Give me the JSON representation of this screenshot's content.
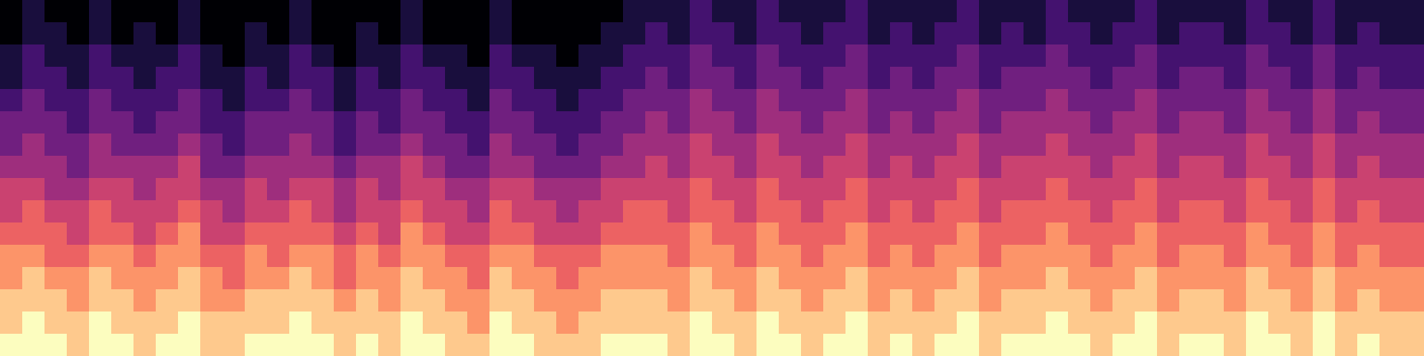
{
  "chart_data": {
    "type": "heatmap",
    "color": "magma",
    "tick_labels": false,
    "zlim": [
      0,
      9
    ],
    "cells": [
      [
        0,
        1,
        0,
        0,
        1,
        0,
        0,
        0,
        1,
        0,
        0,
        0,
        0,
        1,
        0,
        0,
        0,
        0,
        1,
        0,
        0,
        0,
        1,
        0,
        0,
        0,
        0,
        0,
        1,
        1,
        1,
        2,
        1,
        1,
        2,
        1,
        1,
        1,
        2,
        1,
        1,
        1,
        1,
        2,
        1,
        1,
        1,
        2,
        1,
        1,
        1,
        2,
        1,
        1,
        1,
        1,
        2,
        1,
        1,
        2,
        1,
        1,
        1,
        1
      ],
      [
        0,
        1,
        1,
        0,
        1,
        0,
        1,
        0,
        1,
        0,
        0,
        1,
        0,
        1,
        0,
        0,
        1,
        0,
        1,
        0,
        0,
        0,
        1,
        0,
        0,
        0,
        0,
        1,
        1,
        2,
        1,
        2,
        2,
        1,
        2,
        2,
        1,
        2,
        2,
        1,
        2,
        1,
        2,
        2,
        1,
        2,
        1,
        2,
        2,
        1,
        2,
        2,
        1,
        2,
        2,
        1,
        2,
        2,
        1,
        2,
        1,
        2,
        1,
        1
      ],
      [
        1,
        2,
        1,
        1,
        2,
        1,
        1,
        1,
        2,
        1,
        0,
        1,
        1,
        2,
        1,
        0,
        1,
        1,
        2,
        1,
        1,
        0,
        2,
        1,
        1,
        0,
        1,
        1,
        2,
        2,
        2,
        3,
        2,
        2,
        3,
        2,
        2,
        2,
        3,
        2,
        2,
        2,
        2,
        3,
        2,
        2,
        2,
        3,
        2,
        2,
        2,
        3,
        2,
        2,
        2,
        2,
        3,
        2,
        2,
        3,
        2,
        2,
        2,
        2
      ],
      [
        1,
        2,
        2,
        1,
        2,
        2,
        1,
        2,
        2,
        1,
        1,
        2,
        1,
        2,
        2,
        1,
        2,
        1,
        2,
        2,
        1,
        1,
        2,
        2,
        1,
        1,
        1,
        2,
        2,
        3,
        2,
        3,
        3,
        2,
        3,
        3,
        2,
        3,
        3,
        2,
        3,
        2,
        3,
        3,
        2,
        3,
        3,
        3,
        3,
        2,
        3,
        3,
        2,
        3,
        3,
        2,
        3,
        3,
        2,
        3,
        2,
        3,
        2,
        2
      ],
      [
        2,
        3,
        2,
        2,
        3,
        2,
        2,
        2,
        3,
        2,
        1,
        2,
        2,
        3,
        2,
        1,
        2,
        2,
        3,
        2,
        2,
        1,
        3,
        2,
        2,
        1,
        2,
        2,
        3,
        3,
        3,
        4,
        3,
        3,
        4,
        3,
        3,
        3,
        4,
        3,
        3,
        3,
        3,
        4,
        3,
        3,
        3,
        4,
        3,
        3,
        3,
        4,
        3,
        3,
        3,
        3,
        4,
        3,
        3,
        4,
        3,
        3,
        3,
        3
      ],
      [
        3,
        3,
        3,
        2,
        3,
        3,
        2,
        3,
        3,
        2,
        2,
        3,
        3,
        3,
        3,
        2,
        3,
        2,
        3,
        3,
        2,
        2,
        3,
        3,
        2,
        2,
        2,
        3,
        3,
        4,
        3,
        4,
        4,
        3,
        4,
        4,
        3,
        4,
        4,
        3,
        4,
        3,
        4,
        4,
        3,
        4,
        4,
        4,
        4,
        3,
        4,
        4,
        3,
        4,
        4,
        3,
        4,
        4,
        3,
        4,
        3,
        4,
        3,
        3
      ],
      [
        3,
        4,
        3,
        3,
        4,
        3,
        3,
        3,
        4,
        3,
        2,
        3,
        3,
        4,
        3,
        2,
        3,
        3,
        4,
        3,
        3,
        2,
        4,
        3,
        3,
        2,
        3,
        3,
        4,
        4,
        4,
        5,
        4,
        4,
        5,
        4,
        4,
        4,
        5,
        4,
        4,
        4,
        4,
        5,
        4,
        4,
        4,
        5,
        4,
        4,
        4,
        5,
        4,
        4,
        4,
        4,
        5,
        4,
        4,
        5,
        4,
        4,
        4,
        4
      ],
      [
        4,
        4,
        4,
        3,
        4,
        4,
        4,
        4,
        5,
        3,
        3,
        4,
        4,
        4,
        4,
        3,
        4,
        4,
        5,
        4,
        3,
        3,
        4,
        4,
        3,
        3,
        3,
        4,
        4,
        5,
        4,
        5,
        5,
        4,
        5,
        5,
        4,
        5,
        5,
        4,
        5,
        4,
        5,
        5,
        4,
        5,
        5,
        5,
        5,
        4,
        5,
        5,
        4,
        5,
        5,
        4,
        5,
        5,
        4,
        5,
        4,
        5,
        4,
        4
      ],
      [
        5,
        5,
        4,
        4,
        5,
        5,
        4,
        5,
        5,
        4,
        4,
        5,
        4,
        5,
        5,
        4,
        5,
        4,
        5,
        5,
        4,
        4,
        5,
        5,
        4,
        4,
        4,
        5,
        5,
        5,
        5,
        6,
        5,
        5,
        6,
        5,
        5,
        5,
        6,
        5,
        5,
        5,
        5,
        6,
        5,
        5,
        5,
        6,
        5,
        5,
        5,
        6,
        5,
        5,
        5,
        5,
        6,
        5,
        5,
        6,
        5,
        5,
        5,
        5
      ],
      [
        5,
        6,
        5,
        5,
        6,
        5,
        5,
        5,
        6,
        5,
        4,
        5,
        5,
        6,
        5,
        4,
        5,
        5,
        6,
        5,
        5,
        4,
        6,
        5,
        5,
        4,
        5,
        5,
        6,
        6,
        5,
        6,
        6,
        5,
        6,
        6,
        5,
        6,
        6,
        5,
        6,
        5,
        6,
        6,
        5,
        6,
        6,
        6,
        6,
        5,
        6,
        6,
        5,
        6,
        6,
        5,
        6,
        6,
        5,
        6,
        5,
        6,
        5,
        5
      ],
      [
        6,
        6,
        6,
        5,
        6,
        6,
        5,
        6,
        7,
        5,
        5,
        6,
        6,
        6,
        6,
        5,
        6,
        5,
        7,
        6,
        5,
        5,
        6,
        6,
        5,
        5,
        5,
        6,
        6,
        6,
        6,
        7,
        6,
        6,
        7,
        6,
        6,
        6,
        7,
        6,
        6,
        6,
        6,
        7,
        6,
        6,
        6,
        7,
        6,
        6,
        6,
        7,
        6,
        6,
        6,
        6,
        7,
        6,
        6,
        7,
        6,
        6,
        6,
        6
      ],
      [
        7,
        7,
        6,
        6,
        7,
        7,
        6,
        7,
        7,
        6,
        6,
        7,
        6,
        7,
        7,
        6,
        7,
        6,
        7,
        7,
        6,
        6,
        7,
        7,
        6,
        6,
        6,
        7,
        7,
        7,
        6,
        7,
        7,
        6,
        7,
        7,
        6,
        7,
        7,
        6,
        7,
        6,
        7,
        7,
        6,
        7,
        7,
        7,
        7,
        6,
        7,
        7,
        6,
        7,
        7,
        6,
        7,
        7,
        6,
        7,
        6,
        7,
        6,
        6
      ],
      [
        7,
        8,
        7,
        7,
        8,
        7,
        7,
        7,
        8,
        7,
        6,
        7,
        7,
        8,
        7,
        6,
        7,
        7,
        8,
        7,
        7,
        6,
        8,
        7,
        7,
        6,
        7,
        7,
        7,
        7,
        7,
        8,
        7,
        7,
        8,
        7,
        7,
        7,
        8,
        7,
        7,
        7,
        7,
        8,
        7,
        7,
        7,
        8,
        7,
        7,
        7,
        8,
        7,
        7,
        7,
        7,
        8,
        7,
        7,
        8,
        7,
        7,
        7,
        7
      ],
      [
        8,
        8,
        8,
        7,
        8,
        8,
        7,
        8,
        8,
        7,
        7,
        8,
        8,
        8,
        8,
        7,
        8,
        7,
        8,
        8,
        7,
        7,
        8,
        8,
        7,
        7,
        7,
        8,
        8,
        8,
        7,
        8,
        8,
        7,
        8,
        8,
        7,
        8,
        8,
        7,
        8,
        7,
        8,
        8,
        7,
        8,
        8,
        8,
        8,
        7,
        8,
        8,
        7,
        8,
        8,
        7,
        8,
        8,
        7,
        8,
        7,
        8,
        7,
        7
      ],
      [
        8,
        9,
        8,
        8,
        9,
        8,
        8,
        8,
        9,
        8,
        8,
        8,
        8,
        9,
        8,
        8,
        8,
        8,
        9,
        8,
        8,
        7,
        9,
        8,
        8,
        7,
        8,
        8,
        8,
        8,
        8,
        9,
        8,
        8,
        9,
        8,
        8,
        8,
        9,
        8,
        8,
        8,
        8,
        9,
        8,
        8,
        8,
        9,
        8,
        8,
        8,
        9,
        8,
        8,
        8,
        8,
        9,
        8,
        8,
        9,
        8,
        8,
        8,
        8
      ],
      [
        9,
        9,
        9,
        8,
        9,
        9,
        8,
        9,
        9,
        8,
        8,
        9,
        9,
        9,
        9,
        8,
        9,
        8,
        9,
        9,
        8,
        8,
        9,
        9,
        8,
        8,
        8,
        9,
        9,
        9,
        8,
        9,
        9,
        8,
        9,
        9,
        8,
        9,
        9,
        8,
        9,
        8,
        9,
        9,
        8,
        9,
        9,
        9,
        9,
        8,
        9,
        9,
        8,
        9,
        9,
        8,
        9,
        9,
        8,
        9,
        8,
        9,
        8,
        8
      ]
    ]
  }
}
